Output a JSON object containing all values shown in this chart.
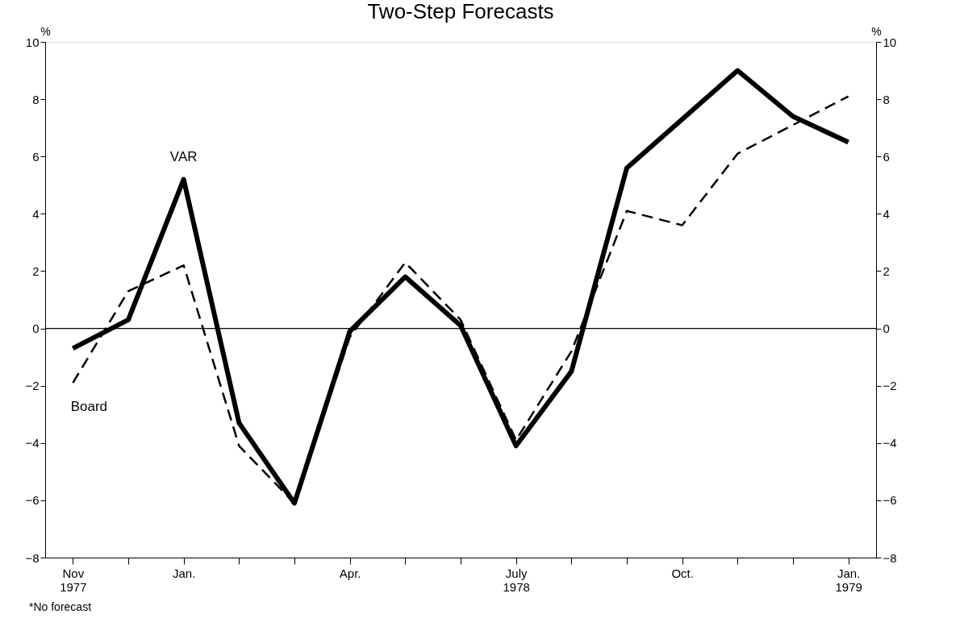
{
  "chart_data": {
    "type": "line",
    "title": "Two-Step Forecasts",
    "ylabel": "%",
    "y2label": "%",
    "categories": [
      "Nov\n1977",
      null,
      "Jan.",
      null,
      null,
      "Apr.",
      null,
      null,
      "July\n1978",
      null,
      null,
      "Oct.",
      null,
      null,
      "Jan.\n1979"
    ],
    "series": [
      {
        "name": "VAR",
        "color": "#000000",
        "line_style": "solid",
        "values": [
          -0.7,
          0.3,
          5.2,
          -3.3,
          -6.1,
          -0.1,
          1.8,
          0.1,
          -4.1,
          -1.5,
          5.6,
          7.3,
          9.0,
          7.4,
          6.5
        ]
      },
      {
        "name": "Board",
        "color": "#000000",
        "line_style": "dashed",
        "values": [
          -1.9,
          1.3,
          2.2,
          -4.1,
          -6.1,
          -0.3,
          2.3,
          0.3,
          -3.9,
          -0.8,
          4.1,
          3.6,
          6.1,
          null,
          8.1
        ]
      }
    ],
    "ylim": [
      -8,
      10
    ],
    "yticks": [
      -8,
      -6,
      -4,
      -2,
      0,
      2,
      4,
      6,
      8,
      10
    ],
    "y2lim": [
      -8,
      10
    ],
    "y2ticks": [
      -8,
      -6,
      -4,
      -2,
      0,
      2,
      4,
      6,
      8,
      10
    ],
    "ref_lines": [
      {
        "axis": "y2",
        "value": 0,
        "color": "#000000"
      }
    ],
    "annotations": [
      "*No forecast"
    ],
    "grid": false,
    "legend": false,
    "marker": "none"
  }
}
